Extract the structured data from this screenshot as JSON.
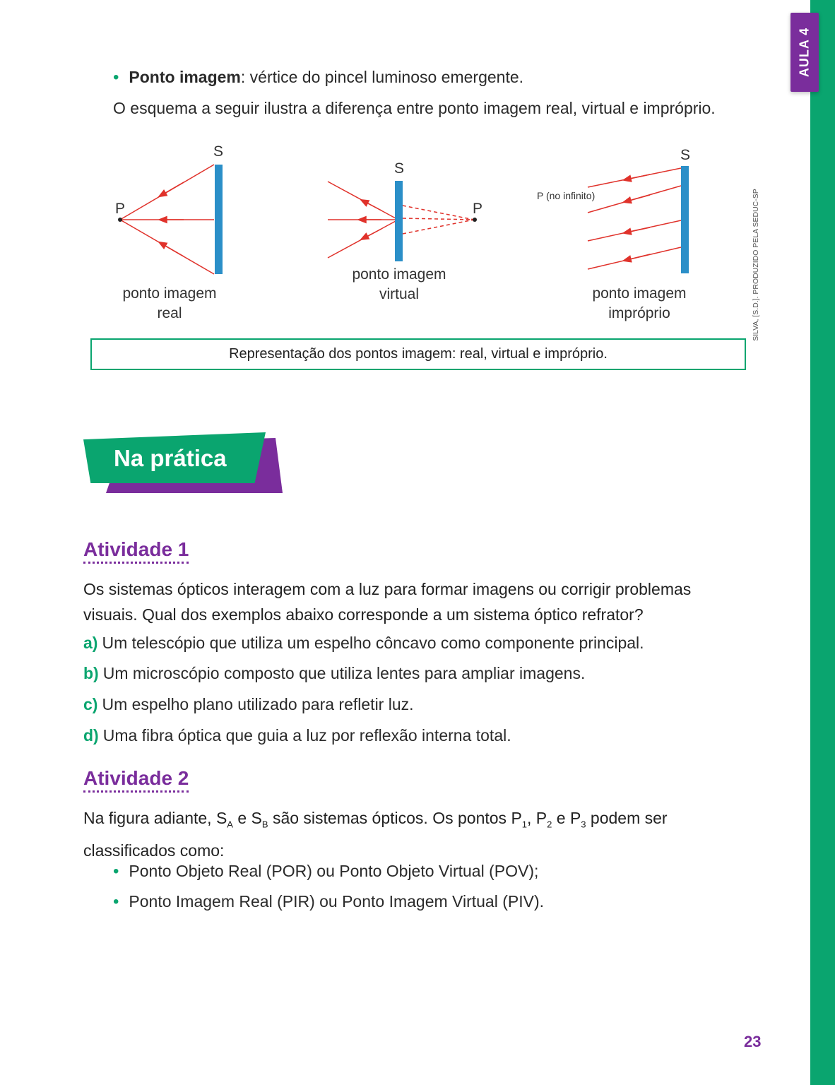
{
  "side_tab": {
    "label": "AULA 4"
  },
  "intro": {
    "bullet_term": "Ponto imagem",
    "bullet_rest": ": vértice do pincel luminoso emergente.",
    "paragraph": "O esquema a seguir ilustra a diferença entre ponto imagem real, virtual e impróprio."
  },
  "diagram": {
    "real": {
      "system": "S",
      "point": "P",
      "label_1": "ponto imagem",
      "label_2": "real"
    },
    "virtual": {
      "system": "S",
      "point": "P",
      "label_1": "ponto imagem",
      "label_2": "virtual"
    },
    "improper": {
      "system": "S",
      "point_note": "P (no infinito)",
      "label_1": "ponto imagem",
      "label_2": "impróprio"
    },
    "credit": "SILVA, [S.D.]. PRODUZIDO PELA SEDUC-SP",
    "caption": "Representação dos pontos imagem: real, virtual e impróprio.",
    "colors": {
      "ray": "#e0322b",
      "system": "#2b8fc8"
    }
  },
  "section": {
    "title": "Na prática"
  },
  "activity1": {
    "title": "Atividade 1",
    "question_line1": "Os sistemas ópticos interagem com a luz para formar imagens ou corrigir problemas",
    "question_line2": "visuais. Qual dos exemplos abaixo corresponde a um sistema óptico refrator?",
    "options": [
      {
        "letter": "a)",
        "text": "Um telescópio que utiliza um espelho côncavo como componente principal."
      },
      {
        "letter": "b)",
        "text": "Um microscópio composto que utiliza lentes para ampliar imagens."
      },
      {
        "letter": "c)",
        "text": "Um espelho plano utilizado para refletir luz."
      },
      {
        "letter": "d)",
        "text": "Uma fibra óptica que guia a luz por reflexão interna total."
      }
    ]
  },
  "activity2": {
    "title": "Atividade 2",
    "q_na_figura": "Na figura adiante, S",
    "q_sub_a": "A",
    "q_e1": " e S",
    "q_sub_b": "B",
    "q_mid": " são sistemas ópticos. Os pontos P",
    "q_sub_1": "1",
    "q_comma": ", P",
    "q_sub_2": "2",
    "q_e2": " e P",
    "q_sub_3": "3",
    "q_end": " podem ser",
    "question_line2": "classificados como:",
    "bullets": [
      "Ponto Objeto Real (POR) ou Ponto Objeto Virtual (POV);",
      "Ponto Imagem Real (PIR) ou Ponto Imagem Virtual (PIV)."
    ]
  },
  "footer": {
    "page_number": "23"
  },
  "theme": {
    "green": "#0aa56f",
    "purple": "#7a2d9c"
  }
}
